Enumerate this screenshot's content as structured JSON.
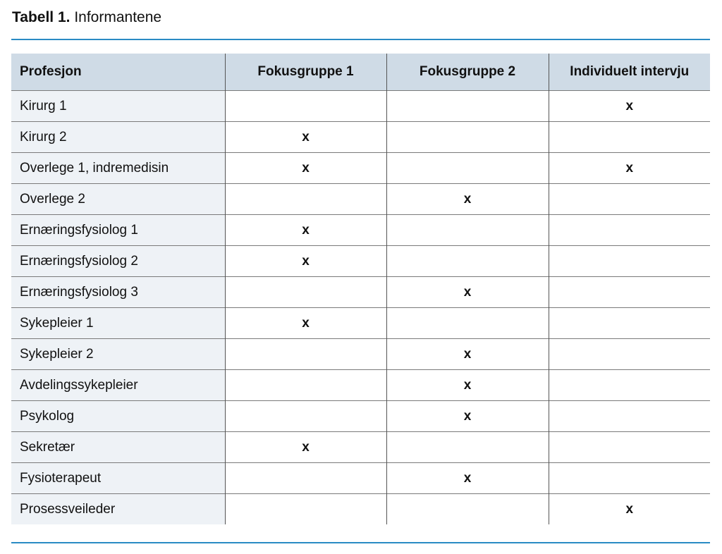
{
  "caption": {
    "label": "Tabell 1.",
    "title": "Informantene"
  },
  "table": {
    "headers": [
      "Profesjon",
      "Fokusgruppe 1",
      "Fokusgruppe 2",
      "Individuelt intervju"
    ],
    "rows": [
      [
        "Kirurg 1",
        "",
        "",
        "x"
      ],
      [
        "Kirurg 2",
        "x",
        "",
        ""
      ],
      [
        "Overlege 1, indremedisin",
        "x",
        "",
        "x"
      ],
      [
        "Overlege 2",
        "",
        "x",
        ""
      ],
      [
        "Ernæringsfysiolog 1",
        "x",
        "",
        ""
      ],
      [
        "Ernæringsfysiolog 2",
        "x",
        "",
        ""
      ],
      [
        "Ernæringsfysiolog 3",
        "",
        "x",
        ""
      ],
      [
        "Sykepleier 1",
        "x",
        "",
        ""
      ],
      [
        "Sykepleier 2",
        "",
        "x",
        ""
      ],
      [
        "Avdelingssykepleier",
        "",
        "x",
        ""
      ],
      [
        "Psykolog",
        "",
        "x",
        ""
      ],
      [
        "Sekretær",
        "x",
        "",
        ""
      ],
      [
        "Fysioterapeut",
        "",
        "x",
        ""
      ],
      [
        "Prosessveileder",
        "",
        "",
        "x"
      ]
    ]
  },
  "colors": {
    "rule": "#2a8bc4",
    "header_bg": "#cfdbe6",
    "first_col_bg": "#eef2f6"
  }
}
